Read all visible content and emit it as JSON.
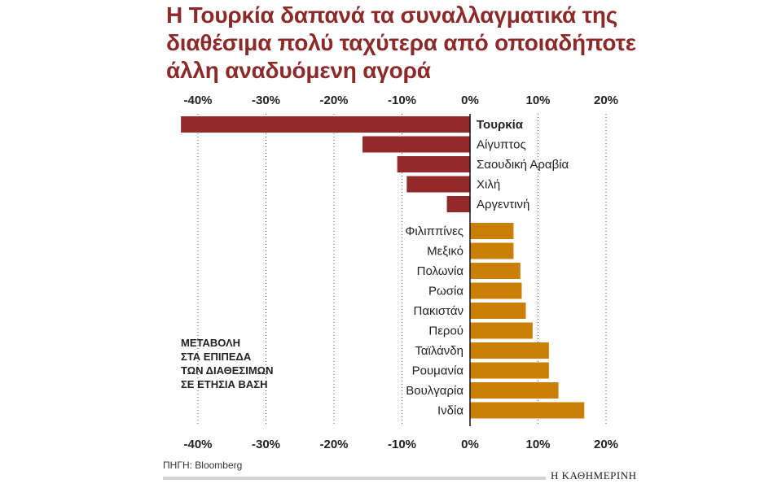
{
  "title_lines": [
    "Η Τουρκία δαπανά τα συναλλαγματικά της",
    "διαθέσιμα πολύ ταχύτερα από οποιαδήποτε",
    "άλλη αναδυόμενη αγορά"
  ],
  "note_lines": [
    "ΜΕΤΑΒΟΛΗ",
    "ΣΤΑ ΕΠΙΠΕΔΑ",
    "ΤΩΝ ΔΙΑΘΕΣΙΜΩΝ",
    "ΣΕ ΕΤΗΣΙΑ ΒΑΣΗ"
  ],
  "source": "ΠΗΓΗ: Bloomberg",
  "brand": "Η ΚΑΘΗΜΕΡΙΝΗ",
  "colors": {
    "negative": "#922a2a",
    "positive": "#cc7f07",
    "title": "#8c2a2a",
    "grid": "#555555"
  },
  "chart_data": {
    "type": "bar",
    "orientation": "horizontal",
    "title": "Η Τουρκία δαπανά τα συναλλαγματικά της διαθέσιμα πολύ ταχύτερα από οποιαδήποτε άλλη αναδυόμενη αγορά",
    "xlabel": "",
    "ylabel": "",
    "xlim": [
      -42,
      20
    ],
    "x_ticks": [
      -40,
      -30,
      -20,
      -10,
      0,
      10,
      20
    ],
    "x_tick_labels": [
      "-40%",
      "-30%",
      "-20%",
      "-10%",
      "0%",
      "10%",
      "20%"
    ],
    "tick_positions": "top and bottom",
    "grid": "vertical dotted",
    "categories": [
      "Τουρκία",
      "Αίγυπτος",
      "Σαουδική Αραβία",
      "Χιλή",
      "Αργεντινή",
      "Φιλιππίνες",
      "Μεξικό",
      "Πολωνία",
      "Ρωσία",
      "Πακιστάν",
      "Περού",
      "Ταϊλάνδη",
      "Ρουμανία",
      "Βουλγαρία",
      "Ινδία"
    ],
    "highlighted_category": "Τουρκία",
    "values": [
      -42.5,
      -15.8,
      -10.7,
      -9.3,
      -3.4,
      6.4,
      6.4,
      7.4,
      7.6,
      8.2,
      9.2,
      11.6,
      11.6,
      13.0,
      16.8
    ],
    "unit": "%"
  }
}
